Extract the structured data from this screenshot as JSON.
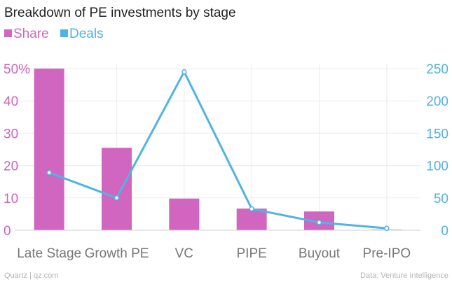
{
  "colors": {
    "share": "#d066c0",
    "deals": "#51b3e3",
    "grid": "#ececec",
    "axis": "#cfcfcf"
  },
  "legend": {
    "share_label": "Share",
    "deals_label": "Deals"
  },
  "footer": {
    "left": "Quartz | qz.com",
    "right": "Data: Venture Intelligence"
  },
  "chart_data": {
    "type": "bar",
    "title": "Breakdown of PE investments by stage",
    "categories": [
      "Late Stage",
      "Growth PE",
      "VC",
      "PIPE",
      "Buyout",
      "Pre-IPO"
    ],
    "series": [
      {
        "name": "Share",
        "type": "bar",
        "axis": "left",
        "unit": "%",
        "values": [
          50,
          25.5,
          9.8,
          6.7,
          5.8,
          0.2
        ]
      },
      {
        "name": "Deals",
        "type": "line",
        "axis": "right",
        "values": [
          89,
          50,
          245,
          33,
          12,
          3
        ]
      }
    ],
    "y_left": {
      "ylim": [
        0,
        50
      ],
      "ticks": [
        "0",
        "10",
        "20",
        "30",
        "40",
        "50%"
      ]
    },
    "y_right": {
      "ylim": [
        0,
        250
      ],
      "ticks": [
        "0",
        "50",
        "100",
        "150",
        "200",
        "250"
      ]
    },
    "grid": true,
    "legend_position": "top-left"
  }
}
